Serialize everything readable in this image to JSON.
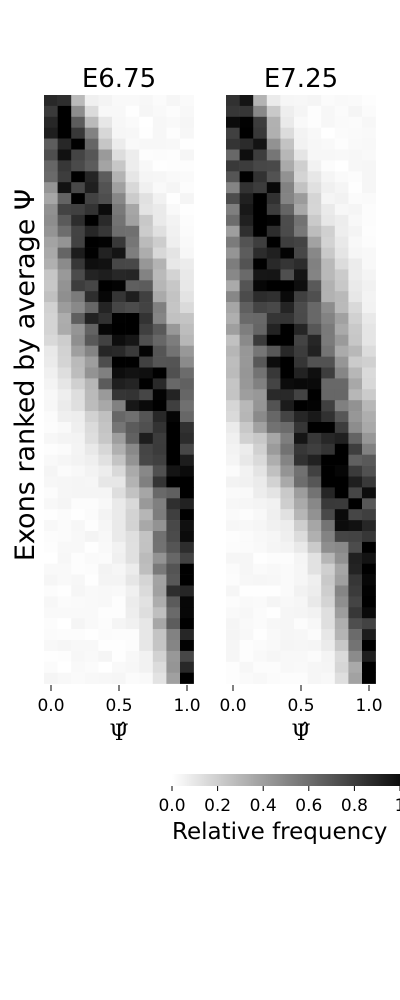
{
  "chart_data": [
    {
      "type": "heatmap",
      "title": "E6.75",
      "ylabel": "Exons ranked by average Ψ",
      "xlabel": "Ψ̂",
      "xticks": [
        "0.0",
        "0.5",
        "1.0"
      ],
      "n_bins": 11,
      "n_rows": 54,
      "ridge_start_bin": 0.2,
      "ridge_mid_row": 20,
      "ridge_end_bin": 10.6,
      "ridge_end_row": 36
    },
    {
      "type": "heatmap",
      "title": "E7.25",
      "xlabel": "Ψ̂",
      "xticks": [
        "0.0",
        "0.5",
        "1.0"
      ],
      "n_bins": 11,
      "n_rows": 54,
      "ridge_start_bin": 0.3,
      "ridge_mid_row": 27,
      "ridge_end_bin": 10.6,
      "ridge_end_row": 42
    }
  ],
  "colorbar": {
    "label": "Relative frequency",
    "ticks": [
      "0.0",
      "0.2",
      "0.4",
      "0.6",
      "0.8",
      "1"
    ],
    "min_color": "#ffffff",
    "max_color": "#000000"
  }
}
